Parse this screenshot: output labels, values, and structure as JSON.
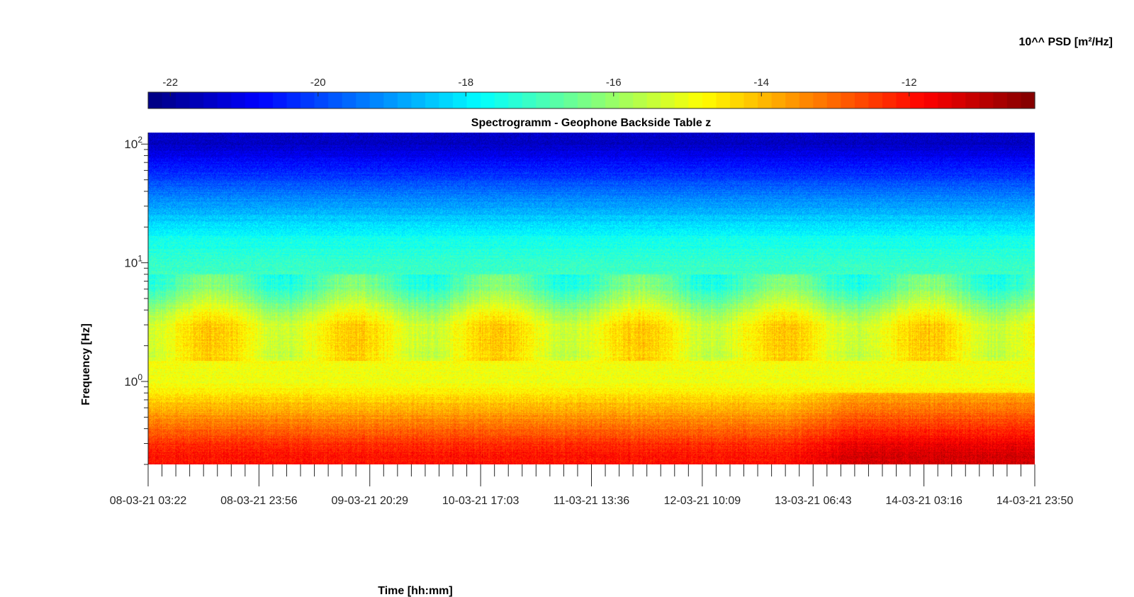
{
  "chart_data": {
    "type": "heatmap",
    "title": "Spectrogramm - Geophone Backside Table z",
    "xlabel": "Time [hh:mm]",
    "ylabel": "Frequency [Hz]",
    "y_scale": "log",
    "ylim": [
      0.2,
      125
    ],
    "x_tick_labels": [
      "08-03-21 03:22",
      "08-03-21 23:56",
      "09-03-21 20:29",
      "10-03-21 17:03",
      "11-03-21 13:36",
      "12-03-21 10:09",
      "13-03-21 06:43",
      "14-03-21 03:16",
      "14-03-21 23:50"
    ],
    "y_ticks": [
      {
        "base": "10",
        "exp": "0",
        "value": 1
      },
      {
        "base": "10",
        "exp": "1",
        "value": 10
      },
      {
        "base": "10",
        "exp": "2",
        "value": 100
      }
    ],
    "colorbar": {
      "label": "10^^ PSD [m²/Hz]",
      "range": [
        -22.3,
        -10.3
      ],
      "ticks": [
        -22,
        -20,
        -18,
        -16,
        -14,
        -12
      ],
      "tick_labels": [
        "-22",
        "-20",
        "-18",
        "-16",
        "-14",
        "-12"
      ],
      "colormap": "jet"
    },
    "grid": false,
    "approximate_levels": [
      {
        "frequency_hz": 100,
        "log10_psd": -21.5
      },
      {
        "frequency_hz": 40,
        "log10_psd": -19.5
      },
      {
        "frequency_hz": 15,
        "log10_psd": -17.5
      },
      {
        "frequency_hz": 6,
        "log10_psd": -16.8
      },
      {
        "frequency_hz": 3,
        "log10_psd": -14.8
      },
      {
        "frequency_hz": 1,
        "log10_psd": -15
      },
      {
        "frequency_hz": 0.5,
        "log10_psd": -13.5
      },
      {
        "frequency_hz": 0.25,
        "log10_psd": -12
      }
    ]
  }
}
